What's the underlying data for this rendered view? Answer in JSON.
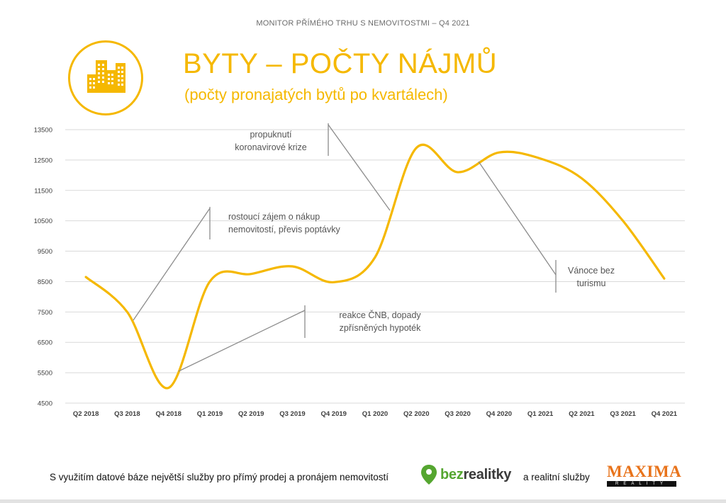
{
  "header": {
    "caption": "MONITOR PŘÍMÉHO TRHU S NEMOVITOSTMI – Q4 2021",
    "title": "BYTY – POČTY NÁJMŮ",
    "subtitle": "(počty pronajatých bytů po kvartálech)",
    "logo_icon": "apartment-buildings-icon"
  },
  "colors": {
    "accent": "#f5b800",
    "axis_text": "#404040",
    "grid": "#d9d9d9",
    "annotation_line": "#8c8c8c"
  },
  "chart_data": {
    "type": "line",
    "title": "",
    "xlabel": "",
    "ylabel": "",
    "categories": [
      "Q2 2018",
      "Q3 2018",
      "Q4 2018",
      "Q1 2019",
      "Q2 2019",
      "Q3 2019",
      "Q4 2019",
      "Q1 2020",
      "Q2 2020",
      "Q3 2020",
      "Q4 2020",
      "Q1 2021",
      "Q2 2021",
      "Q3 2021",
      "Q4 2021"
    ],
    "values": [
      8650,
      7500,
      5000,
      8500,
      8750,
      9000,
      8480,
      9300,
      12900,
      12100,
      12750,
      12550,
      11900,
      10500,
      8600
    ],
    "ylim": [
      4500,
      13500
    ],
    "yticks": [
      4500,
      5500,
      6500,
      7500,
      8500,
      9500,
      10500,
      11500,
      12500,
      13500
    ],
    "grid": true,
    "smooth": true,
    "annotations": [
      {
        "lines": [
          "rostoucí zájem o nákup",
          "nemovitostí, převis poptávky"
        ]
      },
      {
        "lines": [
          "reakce ČNB, dopady",
          "zpřísněných hypoték"
        ]
      },
      {
        "lines": [
          "propuknutí",
          "koronavirové krize"
        ]
      },
      {
        "lines": [
          "Vánoce bez",
          "turismu"
        ]
      }
    ]
  },
  "footer": {
    "text": "S využitím datové báze největší služby pro přímý prodej a pronájem nemovitostí",
    "bez_part1": "bez",
    "bez_part2": "realitky",
    "bez_icon": "location-pin-icon",
    "text2": "a realitní služby",
    "maxima": "MAXIMA",
    "maxima_sub": "REALITY"
  }
}
